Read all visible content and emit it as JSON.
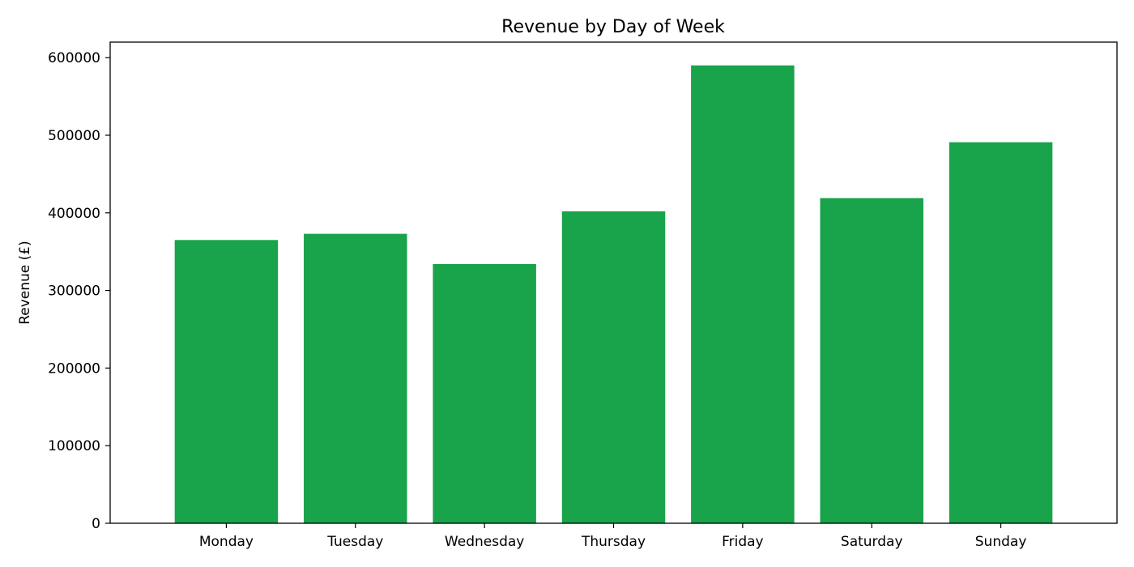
{
  "chart_data": {
    "type": "bar",
    "title": "Revenue by Day of Week",
    "xlabel": "",
    "ylabel": "Revenue (£)",
    "categories": [
      "Monday",
      "Tuesday",
      "Wednesday",
      "Thursday",
      "Friday",
      "Saturday",
      "Sunday"
    ],
    "values": [
      365000,
      373000,
      334000,
      402000,
      590000,
      419000,
      491000
    ],
    "ylim": [
      0,
      620000
    ],
    "yticks": [
      0,
      100000,
      200000,
      300000,
      400000,
      500000,
      600000
    ],
    "ytick_labels": [
      "0",
      "100000",
      "200000",
      "300000",
      "400000",
      "500000",
      "600000"
    ],
    "grid": false,
    "legend": "none",
    "bar_color": "#19a34a"
  }
}
